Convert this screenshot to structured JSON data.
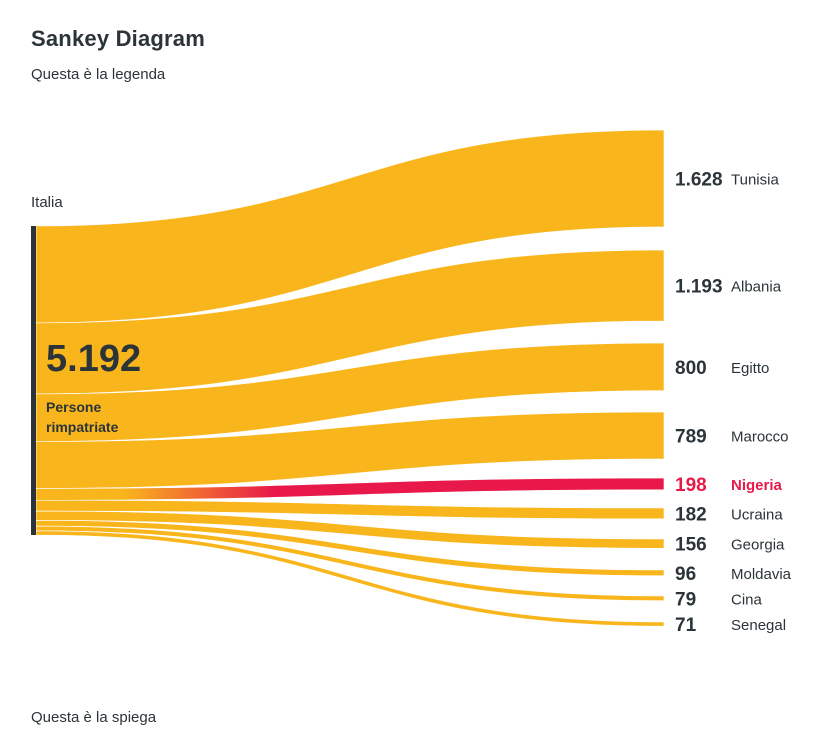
{
  "title": "Sankey Diagram",
  "legend_text": "Questa è la legenda",
  "explanation_text": "Questa è la spiega",
  "colors": {
    "flow": "#f9b51c",
    "highlight": "#e8194a",
    "text": "#2b3438",
    "source_bar": "#2b3438"
  },
  "chart_data": {
    "type": "sankey",
    "source": {
      "name": "Italia",
      "total_label": "5.192",
      "total": 5192,
      "caption_lines": [
        "Persone",
        "rimpatriate"
      ]
    },
    "flows": [
      {
        "target": "Tunisia",
        "value": 1628,
        "label": "1.628",
        "highlight": false
      },
      {
        "target": "Albania",
        "value": 1193,
        "label": "1.193",
        "highlight": false
      },
      {
        "target": "Egitto",
        "value": 800,
        "label": "800",
        "highlight": false
      },
      {
        "target": "Marocco",
        "value": 789,
        "label": "789",
        "highlight": false
      },
      {
        "target": "Nigeria",
        "value": 198,
        "label": "198",
        "highlight": true
      },
      {
        "target": "Ucraina",
        "value": 182,
        "label": "182",
        "highlight": false
      },
      {
        "target": "Georgia",
        "value": 156,
        "label": "156",
        "highlight": false
      },
      {
        "target": "Moldavia",
        "value": 96,
        "label": "96",
        "highlight": false
      },
      {
        "target": "Cina",
        "value": 79,
        "label": "79",
        "highlight": false
      },
      {
        "target": "Senegal",
        "value": 71,
        "label": "71",
        "highlight": false
      }
    ]
  }
}
